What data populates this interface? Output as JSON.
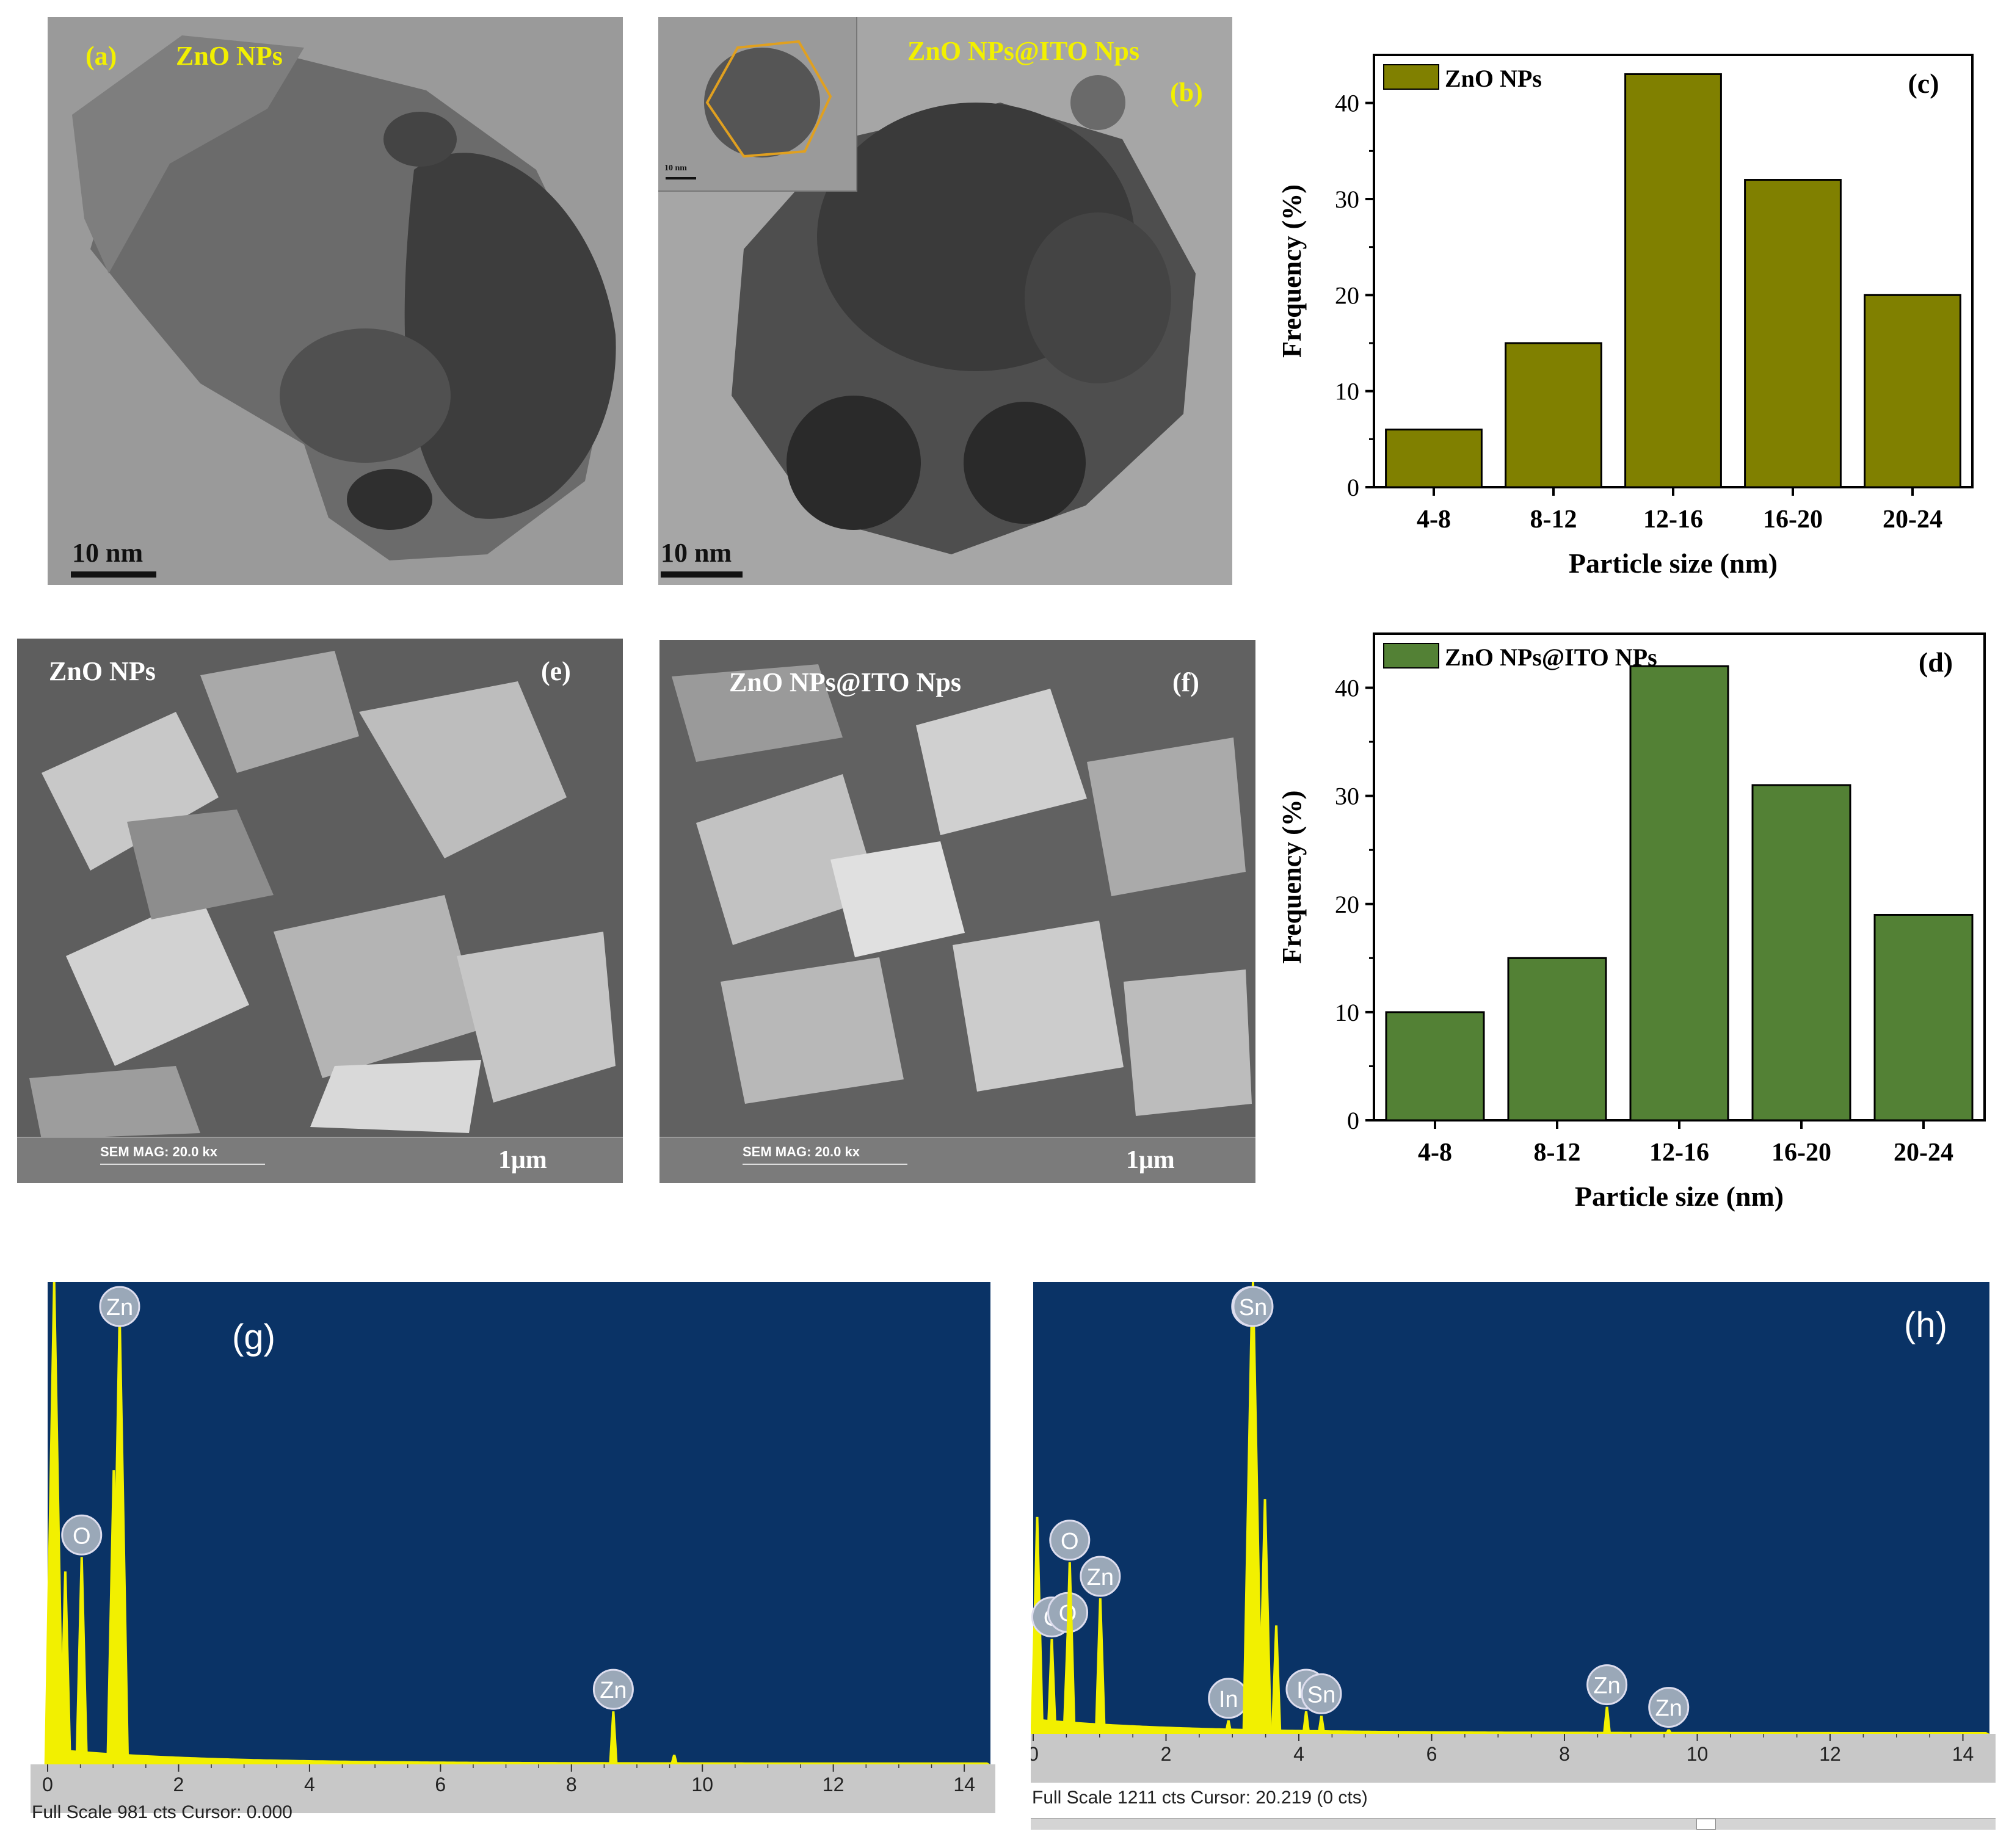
{
  "panels": {
    "a": {
      "tag": "(a)",
      "title": "ZnO NPs",
      "scale": "10 nm"
    },
    "b": {
      "tag": "(b)",
      "title": "ZnO NPs@ITO Nps",
      "scale": "10 nm",
      "inset_scale": "10 nm"
    },
    "e": {
      "tag": "(e)",
      "title": "ZnO NPs",
      "mag": "SEM MAG: 20.0 kx",
      "scale": "1μm"
    },
    "f": {
      "tag": "(f)",
      "title": "ZnO NPs@ITO Nps",
      "mag": "SEM MAG: 20.0 kx",
      "scale": "1μm"
    },
    "g": {
      "tag": "(g)",
      "footer": "Full Scale 981 cts  Cursor: 0.000"
    },
    "h": {
      "tag": "(h)",
      "footer": "Full Scale 1211 cts  Cursor: 20.219  (0 cts)"
    }
  },
  "colors": {
    "olive": "#808000",
    "green": "#538135",
    "eds_bg": "#0a3366",
    "eds_peak": "#f2f000"
  },
  "chart_data": [
    {
      "id": "c",
      "type": "bar",
      "tag": "(c)",
      "categories": [
        "4-8",
        "8-12",
        "12-16",
        "16-20",
        "20-24"
      ],
      "series": [
        {
          "name": "ZnO NPs",
          "values": [
            6,
            15,
            43,
            32,
            20
          ]
        }
      ],
      "xlabel": "Particle  size (nm)",
      "ylabel": "Frequency (%)",
      "ylim": [
        0,
        45
      ],
      "yticks": [
        0,
        10,
        20,
        30,
        40
      ],
      "color": "#808000",
      "legend_position": "top-left"
    },
    {
      "id": "d",
      "type": "bar",
      "tag": "(d)",
      "categories": [
        "4-8",
        "8-12",
        "12-16",
        "16-20",
        "20-24"
      ],
      "series": [
        {
          "name": "ZnO NPs@ITO NPs",
          "values": [
            10,
            15,
            42,
            31,
            19
          ]
        }
      ],
      "xlabel": "Particle size (nm)",
      "ylabel": "Frequency (%)",
      "ylim": [
        0,
        45
      ],
      "yticks": [
        0,
        10,
        20,
        30,
        40
      ],
      "color": "#538135",
      "legend_position": "top-left"
    },
    {
      "id": "g",
      "type": "line",
      "tag": "(g)",
      "xlim": [
        0,
        14.4
      ],
      "xticks": [
        0,
        2,
        4,
        6,
        8,
        10,
        12,
        14
      ],
      "peaks": [
        {
          "x": 0.27,
          "y": 0.4,
          "label": ""
        },
        {
          "x": 0.52,
          "y": 0.43,
          "label": "O"
        },
        {
          "x": 1.01,
          "y": 0.61,
          "label": ""
        },
        {
          "x": 1.1,
          "y": 0.93,
          "label": "Zn"
        },
        {
          "x": 0.1,
          "y": 1.0,
          "label": ""
        },
        {
          "x": 8.64,
          "y": 0.11,
          "label": "Zn"
        },
        {
          "x": 9.57,
          "y": 0.02,
          "label": ""
        }
      ]
    },
    {
      "id": "h",
      "type": "line",
      "tag": "(h)",
      "xlim": [
        0,
        14.4
      ],
      "xticks": [
        0,
        2,
        4,
        6,
        8,
        10,
        12,
        14
      ],
      "peaks": [
        {
          "x": 0.06,
          "y": 0.48,
          "label": ""
        },
        {
          "x": 0.28,
          "y": 0.21,
          "label": "C"
        },
        {
          "x": 0.52,
          "y": 0.22,
          "label": "O"
        },
        {
          "x": 0.55,
          "y": 0.38,
          "label": "O"
        },
        {
          "x": 1.01,
          "y": 0.3,
          "label": "Zn"
        },
        {
          "x": 2.94,
          "y": 0.03,
          "label": "In"
        },
        {
          "x": 3.29,
          "y": 0.92,
          "label": "In"
        },
        {
          "x": 3.31,
          "y": 1.0,
          "label": "Sn"
        },
        {
          "x": 3.49,
          "y": 0.52,
          "label": ""
        },
        {
          "x": 3.66,
          "y": 0.24,
          "label": ""
        },
        {
          "x": 4.11,
          "y": 0.05,
          "label": "In"
        },
        {
          "x": 4.34,
          "y": 0.04,
          "label": "Sn"
        },
        {
          "x": 8.64,
          "y": 0.06,
          "label": "Zn"
        },
        {
          "x": 9.57,
          "y": 0.01,
          "label": "Zn"
        }
      ]
    }
  ]
}
